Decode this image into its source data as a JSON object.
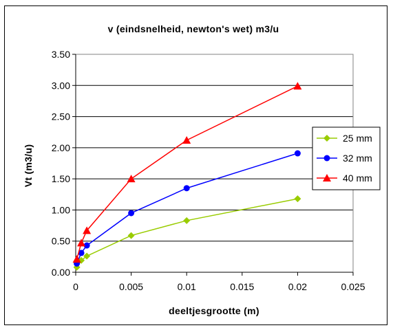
{
  "chart_data": {
    "type": "line",
    "title": "v (eindsnelheid, newton's wet) m3/u",
    "xlabel": "deeltjesgrootte (m)",
    "ylabel": "Vt (m3/u)",
    "xlim": [
      0,
      0.025
    ],
    "ylim": [
      0,
      3.5
    ],
    "x_ticks": [
      "0",
      "0.005",
      "0.01",
      "0.015",
      "0.02",
      "0.025"
    ],
    "y_ticks": [
      "0.00",
      "0.50",
      "1.00",
      "1.50",
      "2.00",
      "2.50",
      "3.00",
      "3.50"
    ],
    "grid": "horizontal",
    "legend_position": "right",
    "series": [
      {
        "name": "25 mm",
        "color": "#99cc00",
        "marker": "diamond",
        "x": [
          0.0001,
          0.0005,
          0.001,
          0.005,
          0.01,
          0.02
        ],
        "y": [
          0.08,
          0.19,
          0.26,
          0.59,
          0.83,
          1.18
        ]
      },
      {
        "name": "32 mm",
        "color": "#0000ff",
        "marker": "circle",
        "x": [
          0.0001,
          0.0005,
          0.001,
          0.005,
          0.01,
          0.02
        ],
        "y": [
          0.14,
          0.31,
          0.43,
          0.95,
          1.35,
          1.91
        ]
      },
      {
        "name": "40 mm",
        "color": "#ff0000",
        "marker": "triangle",
        "x": [
          0.0001,
          0.0005,
          0.001,
          0.005,
          0.01,
          0.02
        ],
        "y": [
          0.21,
          0.47,
          0.67,
          1.5,
          2.12,
          2.99
        ]
      }
    ]
  }
}
